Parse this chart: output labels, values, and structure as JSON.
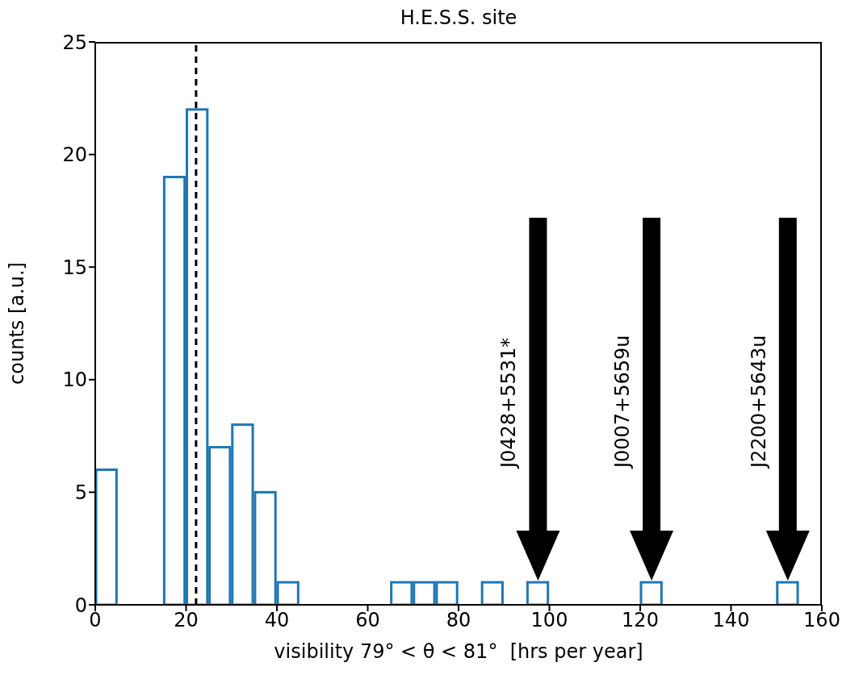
{
  "chart_data": {
    "type": "histogram",
    "title": "H.E.S.S. site",
    "xlabel": "visibility 79° < θ < 81°  [hrs per year]",
    "ylabel": "counts [a.u.]",
    "bins": [
      0,
      5,
      10,
      15,
      20,
      25,
      30,
      35,
      40,
      45,
      50,
      55,
      60,
      65,
      70,
      75,
      80,
      85,
      90,
      95,
      100,
      105,
      110,
      115,
      120,
      125,
      130,
      135,
      140,
      145,
      150,
      155
    ],
    "values": [
      6,
      0,
      0,
      19,
      22,
      7,
      8,
      5,
      1,
      0,
      0,
      0,
      0,
      1,
      1,
      1,
      0,
      1,
      0,
      1,
      0,
      0,
      0,
      0,
      1,
      0,
      0,
      0,
      0,
      0,
      1
    ],
    "color": "#1f77b4",
    "xlim": [
      0,
      160
    ],
    "xticks": [
      0,
      20,
      40,
      60,
      80,
      100,
      120,
      140,
      160
    ],
    "ylim": [
      0,
      25
    ],
    "yticks": [
      0,
      5,
      10,
      15,
      20,
      25
    ],
    "ref_lines": [
      {
        "axis": "x",
        "value": 22.2,
        "color": "#000000",
        "line_style": "dashed"
      }
    ],
    "annotations": [
      "J0428+5531*",
      "J0007+5659u",
      "J2200+5643u"
    ]
  }
}
